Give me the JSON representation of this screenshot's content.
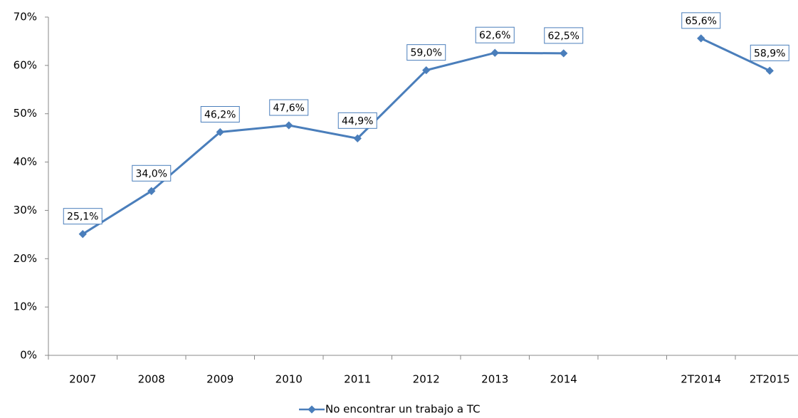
{
  "chart_data": {
    "type": "line",
    "categories": [
      "2007",
      "2008",
      "2009",
      "2010",
      "2011",
      "2012",
      "2013",
      "2014",
      null,
      "2T2014",
      "2T2015"
    ],
    "series": [
      {
        "name": "No encontrar un trabajo a TC",
        "color": "#4a7ebb",
        "values": [
          25.1,
          34.0,
          46.2,
          47.6,
          44.9,
          59.0,
          62.6,
          62.5,
          null,
          65.6,
          58.9
        ],
        "value_labels": [
          "25,1%",
          "34,0%",
          "46,2%",
          "47,6%",
          "44,9%",
          "59,0%",
          "62,6%",
          "62,5%",
          null,
          "65,6%",
          "58,9%"
        ]
      }
    ],
    "ylim": [
      0,
      70
    ],
    "yticks": [
      {
        "value": 0,
        "label": "0%"
      },
      {
        "value": 10,
        "label": "10%"
      },
      {
        "value": 20,
        "label": "20%"
      },
      {
        "value": 30,
        "label": "30%"
      },
      {
        "value": 40,
        "label": "40%"
      },
      {
        "value": 50,
        "label": "50%"
      },
      {
        "value": 60,
        "label": "60%"
      },
      {
        "value": 70,
        "label": "70%"
      }
    ],
    "legend": "bottom"
  }
}
